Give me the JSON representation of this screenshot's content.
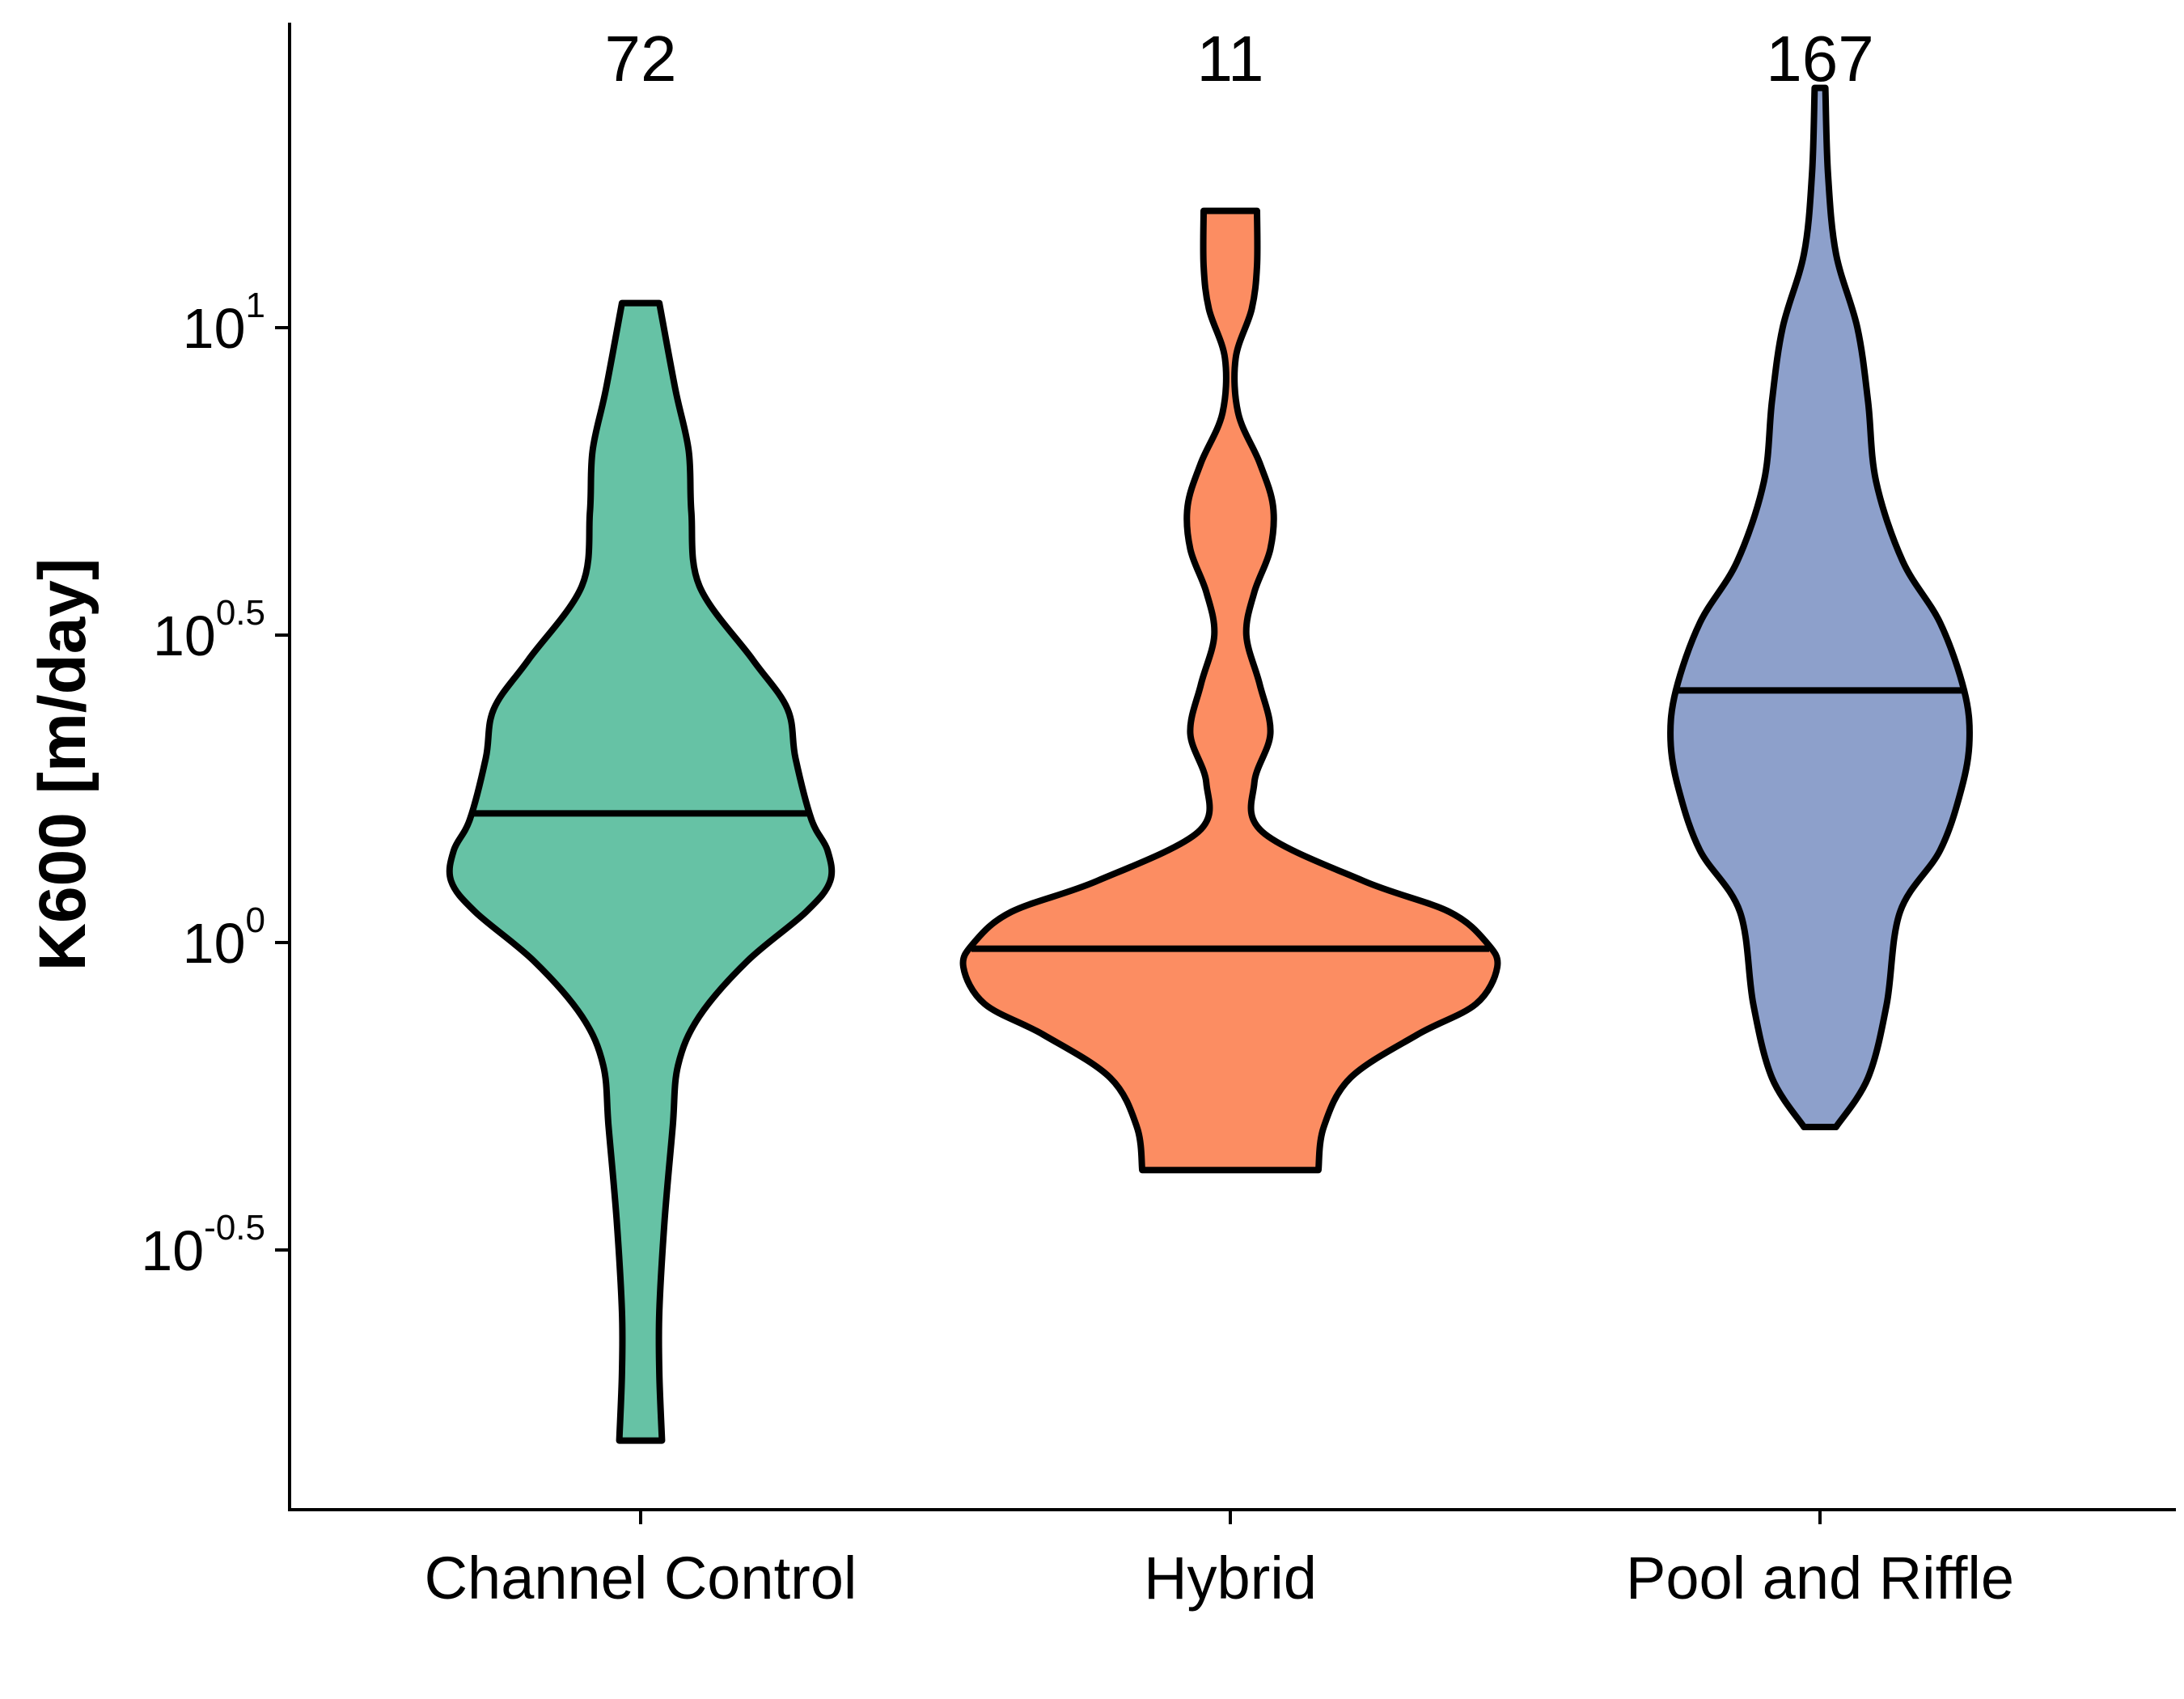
{
  "chart_data": {
    "type": "violin",
    "ylabel": "K600 [m/day]",
    "xlabel": "",
    "yscale": "log10",
    "ylim_log10": [
      -0.93,
      1.48
    ],
    "y_ticks": [
      {
        "base": "10",
        "exp": "-0.5",
        "log10": -0.5
      },
      {
        "base": "10",
        "exp": "0",
        "log10": 0
      },
      {
        "base": "10",
        "exp": "0.5",
        "log10": 0.5
      },
      {
        "base": "10",
        "exp": "1",
        "log10": 1
      }
    ],
    "grid": false,
    "legend": "none",
    "categories": [
      "Channel Control",
      "Hybrid",
      "Pool and Riffle"
    ],
    "series": [
      {
        "category": "Channel Control",
        "count": "72",
        "color": "#66C2A5",
        "min_log10": -0.81,
        "max_log10": 1.04,
        "median_log10": 0.21,
        "density": [
          [
            -0.81,
            0.08
          ],
          [
            -0.7,
            0.07
          ],
          [
            -0.6,
            0.07
          ],
          [
            -0.45,
            0.09
          ],
          [
            -0.3,
            0.12
          ],
          [
            -0.2,
            0.14
          ],
          [
            -0.12,
            0.22
          ],
          [
            -0.03,
            0.4
          ],
          [
            0.05,
            0.62
          ],
          [
            0.1,
            0.71
          ],
          [
            0.15,
            0.7
          ],
          [
            0.2,
            0.64
          ],
          [
            0.3,
            0.58
          ],
          [
            0.38,
            0.55
          ],
          [
            0.46,
            0.42
          ],
          [
            0.58,
            0.22
          ],
          [
            0.7,
            0.19
          ],
          [
            0.8,
            0.18
          ],
          [
            0.9,
            0.13
          ],
          [
            1.04,
            0.07
          ]
        ]
      },
      {
        "category": "Hybrid",
        "count": "11",
        "color": "#FC8D62",
        "min_log10": -0.37,
        "max_log10": 1.19,
        "median_log10": -0.01,
        "density": [
          [
            -0.37,
            0.33
          ],
          [
            -0.3,
            0.35
          ],
          [
            -0.22,
            0.45
          ],
          [
            -0.15,
            0.7
          ],
          [
            -0.1,
            0.92
          ],
          [
            -0.04,
            1.0
          ],
          [
            0.0,
            0.96
          ],
          [
            0.05,
            0.82
          ],
          [
            0.1,
            0.5
          ],
          [
            0.18,
            0.12
          ],
          [
            0.26,
            0.09
          ],
          [
            0.34,
            0.15
          ],
          [
            0.42,
            0.11
          ],
          [
            0.5,
            0.06
          ],
          [
            0.57,
            0.09
          ],
          [
            0.64,
            0.15
          ],
          [
            0.71,
            0.16
          ],
          [
            0.78,
            0.11
          ],
          [
            0.86,
            0.03
          ],
          [
            0.95,
            0.02
          ],
          [
            1.03,
            0.08
          ],
          [
            1.1,
            0.1
          ],
          [
            1.19,
            0.1
          ]
        ]
      },
      {
        "category": "Pool and Riffle",
        "count": "167",
        "color": "#8DA0CB",
        "min_log10": -0.3,
        "max_log10": 1.39,
        "median_log10": 0.41,
        "density": [
          [
            -0.3,
            0.06
          ],
          [
            -0.22,
            0.18
          ],
          [
            -0.1,
            0.25
          ],
          [
            0.05,
            0.3
          ],
          [
            0.15,
            0.45
          ],
          [
            0.25,
            0.53
          ],
          [
            0.33,
            0.56
          ],
          [
            0.41,
            0.54
          ],
          [
            0.52,
            0.45
          ],
          [
            0.62,
            0.31
          ],
          [
            0.75,
            0.21
          ],
          [
            0.88,
            0.18
          ],
          [
            1.0,
            0.14
          ],
          [
            1.12,
            0.06
          ],
          [
            1.25,
            0.03
          ],
          [
            1.39,
            0.02
          ]
        ]
      }
    ]
  }
}
